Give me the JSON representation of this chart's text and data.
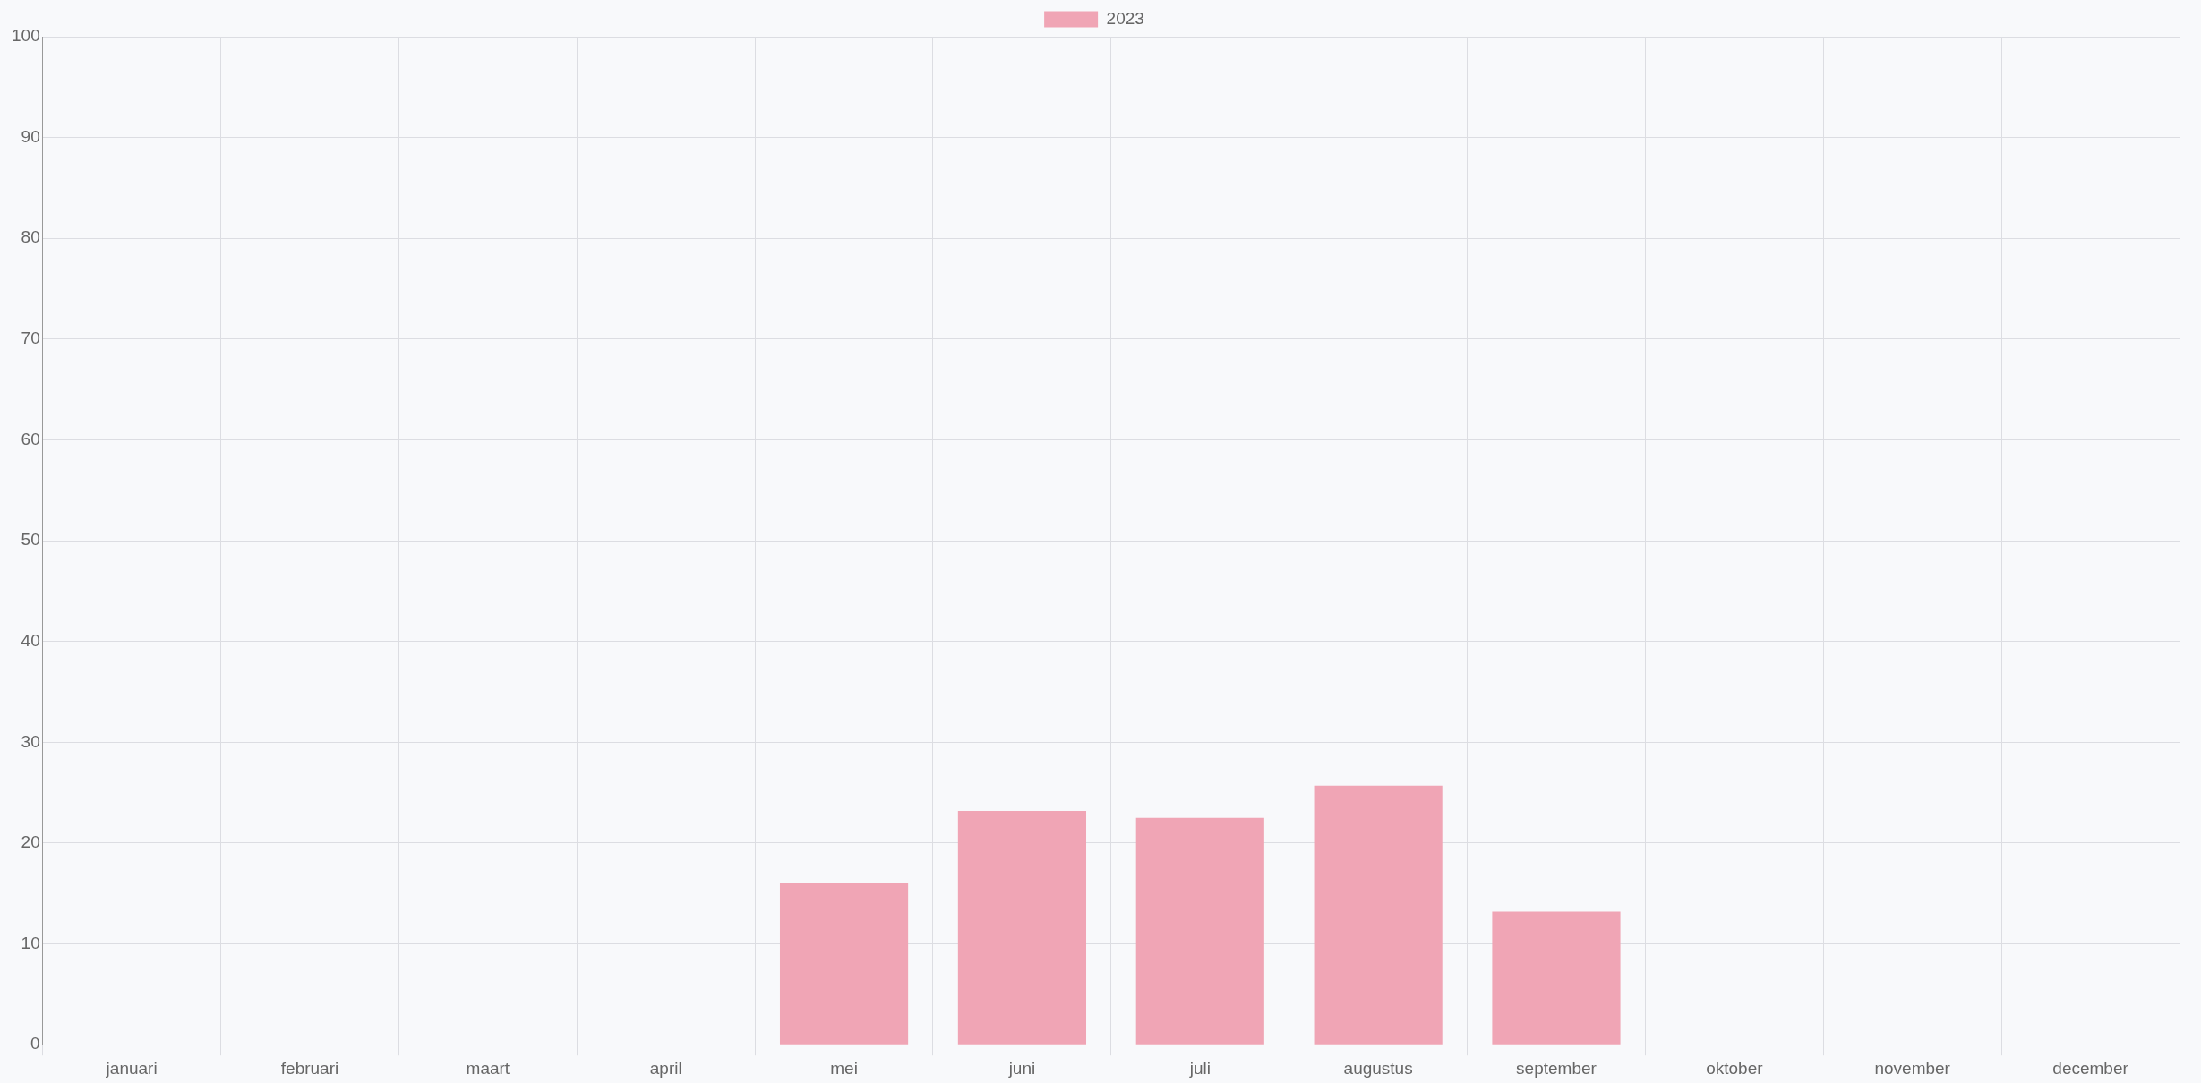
{
  "chart_data": {
    "type": "bar",
    "categories": [
      "januari",
      "februari",
      "maart",
      "april",
      "mei",
      "juni",
      "juli",
      "augustus",
      "september",
      "oktober",
      "november",
      "december"
    ],
    "series": [
      {
        "name": "2023",
        "color": "#f0a5b5",
        "values": [
          null,
          null,
          null,
          null,
          16,
          23.2,
          22.5,
          25.7,
          13.2,
          null,
          null,
          null
        ]
      }
    ],
    "ylim": [
      0,
      100
    ],
    "yticks": [
      0,
      10,
      20,
      30,
      40,
      50,
      60,
      70,
      80,
      90,
      100
    ],
    "grid": true,
    "legend": "top"
  }
}
